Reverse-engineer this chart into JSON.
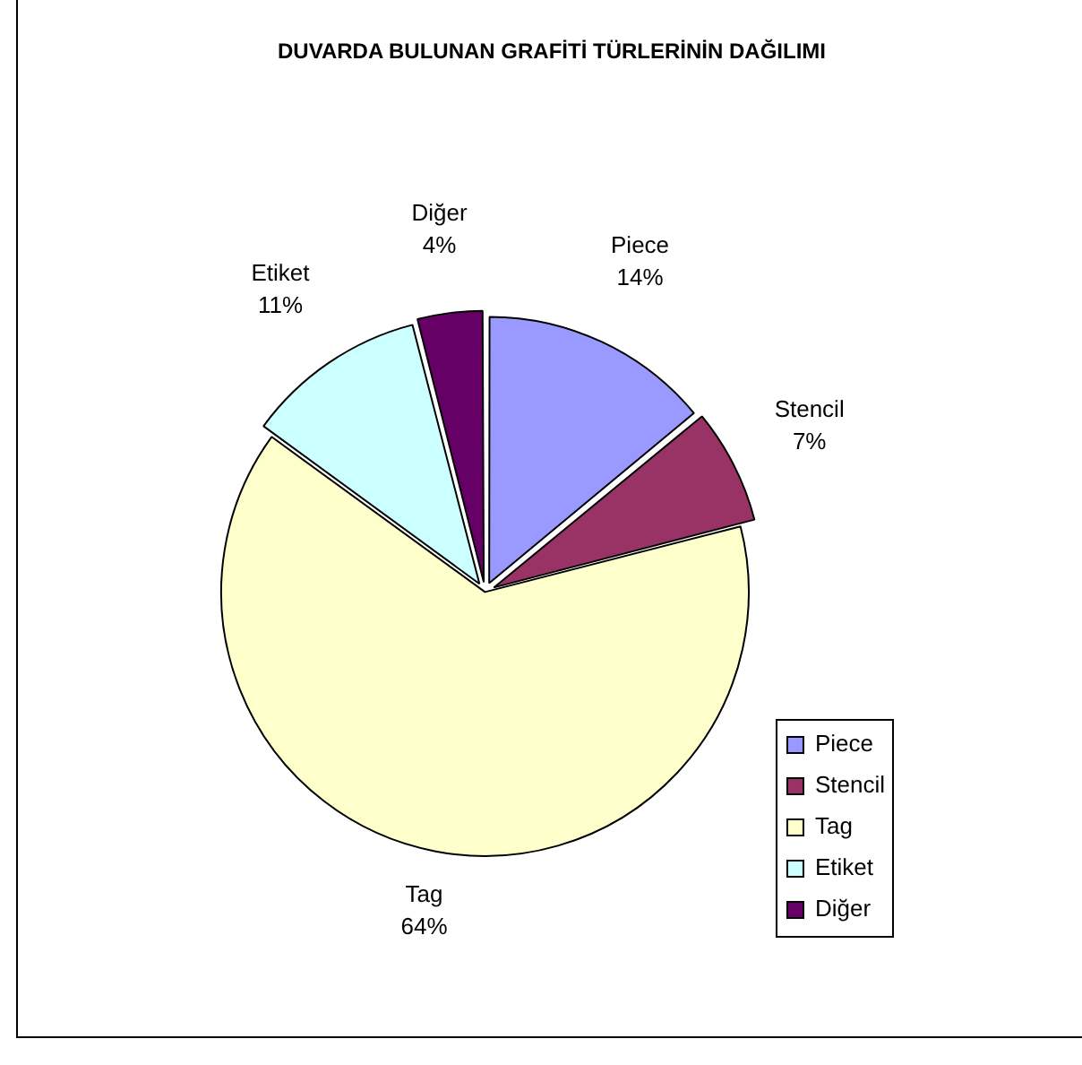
{
  "chart_data": {
    "type": "pie",
    "title": "DUVARDA BULUNAN GRAFİTİ TÜRLERİNİN DAĞILIMI",
    "categories": [
      "Piece",
      "Stencil",
      "Tag",
      "Etiket",
      "Diğer"
    ],
    "values": [
      14,
      7,
      64,
      11,
      4
    ],
    "value_labels": [
      "14%",
      "7%",
      "64%",
      "11%",
      "4%"
    ],
    "colors": [
      "#9999ff",
      "#993366",
      "#ffffcc",
      "#ccffff",
      "#660066"
    ],
    "legend": "right"
  }
}
